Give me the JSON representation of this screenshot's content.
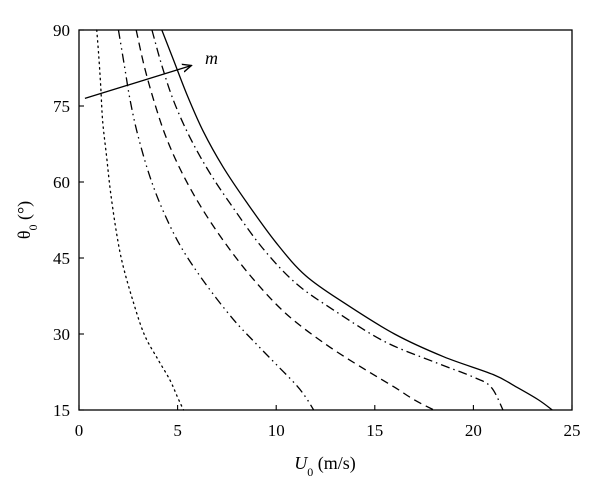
{
  "chart_data": {
    "type": "line",
    "title": "",
    "xlabel": "U0 (m/s)",
    "ylabel": "θ0 (°)",
    "xlim": [
      0,
      25
    ],
    "ylim": [
      15,
      90
    ],
    "xticks": [
      0,
      5,
      10,
      15,
      20,
      25
    ],
    "yticks": [
      15,
      30,
      45,
      60,
      75,
      90
    ],
    "grid": false,
    "legend": "none",
    "annotation": {
      "text": "m",
      "arrow": {
        "from": [
          0.3,
          76.5
        ],
        "to": [
          5.7,
          83
        ]
      }
    },
    "series": [
      {
        "style": "dotted",
        "points": [
          [
            0.9,
            90
          ],
          [
            1.0,
            85
          ],
          [
            1.1,
            79
          ],
          [
            1.2,
            72
          ],
          [
            1.4,
            65
          ],
          [
            1.6,
            58
          ],
          [
            1.9,
            50
          ],
          [
            2.2,
            44
          ],
          [
            2.7,
            37
          ],
          [
            3.3,
            30
          ],
          [
            4.0,
            25
          ],
          [
            4.6,
            21
          ],
          [
            5.0,
            17.5
          ],
          [
            5.3,
            15
          ]
        ]
      },
      {
        "style": "dash-dot-dot",
        "points": [
          [
            2.0,
            90
          ],
          [
            2.3,
            83
          ],
          [
            2.6,
            76
          ],
          [
            3.0,
            69
          ],
          [
            3.6,
            61
          ],
          [
            4.3,
            54
          ],
          [
            5.2,
            47
          ],
          [
            6.4,
            40
          ],
          [
            7.8,
            33
          ],
          [
            9.0,
            28
          ],
          [
            10.0,
            24
          ],
          [
            11.0,
            20
          ],
          [
            11.5,
            17.5
          ],
          [
            11.9,
            15
          ]
        ]
      },
      {
        "style": "dashed",
        "points": [
          [
            2.9,
            90
          ],
          [
            3.3,
            83
          ],
          [
            3.8,
            76
          ],
          [
            4.4,
            69
          ],
          [
            5.2,
            62
          ],
          [
            6.2,
            55
          ],
          [
            7.4,
            48
          ],
          [
            8.8,
            41
          ],
          [
            10.5,
            34
          ],
          [
            12.5,
            28
          ],
          [
            14.5,
            23
          ],
          [
            16.0,
            19.5
          ],
          [
            17.0,
            17
          ],
          [
            18.0,
            15
          ]
        ]
      },
      {
        "style": "dash-dot",
        "points": [
          [
            3.7,
            90
          ],
          [
            4.2,
            83
          ],
          [
            4.8,
            76
          ],
          [
            5.6,
            69
          ],
          [
            6.6,
            62
          ],
          [
            7.8,
            55
          ],
          [
            9.3,
            47
          ],
          [
            11.0,
            40
          ],
          [
            13.0,
            34.5
          ],
          [
            15.5,
            28.5
          ],
          [
            18.0,
            24.5
          ],
          [
            20.0,
            21.5
          ],
          [
            20.9,
            19.5
          ],
          [
            21.5,
            15
          ]
        ]
      },
      {
        "style": "solid",
        "points": [
          [
            4.2,
            90
          ],
          [
            4.8,
            84
          ],
          [
            5.5,
            77
          ],
          [
            6.3,
            70
          ],
          [
            7.3,
            63
          ],
          [
            8.5,
            56
          ],
          [
            10.0,
            48
          ],
          [
            11.5,
            41.5
          ],
          [
            13.5,
            36
          ],
          [
            16.0,
            30
          ],
          [
            18.5,
            25.5
          ],
          [
            21.0,
            22
          ],
          [
            22.2,
            19.5
          ],
          [
            23.3,
            17
          ],
          [
            24.0,
            15
          ]
        ]
      }
    ]
  }
}
